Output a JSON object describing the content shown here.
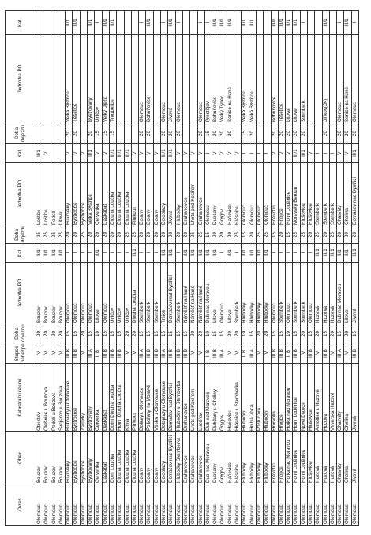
{
  "headers": [
    "Okres",
    "Obec",
    "Katastrální území",
    "Stupeň nebezpečí",
    "Doba dojezdu",
    "Jednotka PO",
    "Kat.",
    "Doba dojezdu",
    "Jednotka PO",
    "Kat.",
    "Doba dojezdu",
    "Jednotka PO",
    "Kat."
  ],
  "rows": [
    [
      "Olomouc",
      "Bouzov",
      "Obectov",
      "IV",
      "20",
      "Bouzov",
      "II/1",
      "25",
      "Loštice",
      "II/1",
      "",
      "",
      ""
    ],
    [
      "Olomouc",
      "Bouzov",
      "Olešnice u Bouzova",
      "IV",
      "20",
      "Bouzov",
      "II/1",
      "25",
      "Loštice",
      "V",
      "",
      "",
      ""
    ],
    [
      "Olomouc",
      "Bouzov",
      "Podolí u Bouzova",
      "IV",
      "20",
      "Bouzov",
      "II/1",
      "25",
      "Podolí",
      "",
      "",
      "",
      ""
    ],
    [
      "Olomouc",
      "Bouzov",
      "Svojanov u Bouzova",
      "IV",
      "20",
      "Bouzov",
      "II/1",
      "25",
      "Litovel",
      "",
      "",
      "",
      ""
    ],
    [
      "Olomouc",
      "Bukovany",
      "Bukovany u Olomouce",
      "III B",
      "15",
      "Olomouc",
      "I",
      "20",
      "Bukovany",
      "V",
      "20",
      "Velká Bystřice",
      "II/1"
    ],
    [
      "Olomouc",
      "Bystročice",
      "Bystročice",
      "III B",
      "15",
      "Olomouc",
      "I",
      "20",
      "Bystročice",
      "V",
      "20",
      "Těšetice",
      "III/1"
    ],
    [
      "Olomouc",
      "Bystročice",
      "Žerůvky",
      "IV",
      "20",
      "Olomouc",
      "I",
      "25",
      "Bystročice",
      "V",
      "",
      "",
      ""
    ],
    [
      "Olomouc",
      "Bystrovany",
      "Bystrovany",
      "III A",
      "15",
      "Olomouc",
      "I",
      "20",
      "Velká Bystřice",
      "II/1",
      "20",
      "Bystrovany",
      "II/1"
    ],
    [
      "Olomouc",
      "Červenka",
      "Červenka",
      "II B",
      "10",
      "Litovel",
      "II/1",
      "20",
      "Červenka",
      "V",
      "15",
      "Uničov",
      "I"
    ],
    [
      "Olomouc",
      "Daskabát",
      "Daskabát",
      "III B",
      "15",
      "Olomouc",
      "I",
      "20",
      "Daskabát",
      "V",
      "15",
      "Velký Újezd",
      "III/1"
    ],
    [
      "Olomouc",
      "Dolní Loučka",
      "Dolní Dlouhá Loučka",
      "III B",
      "15",
      "Uničov",
      "I",
      "20",
      "Dlouhá Loučka",
      "III/1",
      "15",
      "Troubelice",
      "II/1"
    ],
    [
      "Olomouc",
      "Dlouhá Loučka",
      "Horní Dlouhá Loučka",
      "III B",
      "15",
      "Uničov",
      "I",
      "20",
      "Dlouhá Loučka",
      "III/1",
      "",
      "",
      ""
    ],
    [
      "Olomouc",
      "Dlouhá Loučka",
      "Křivá",
      "IV",
      "20",
      "Uničov",
      "I",
      "25",
      "Dlouhá Loučka",
      "III/1",
      "",
      "",
      ""
    ],
    [
      "Olomouc",
      "Dlouhá Loučka",
      "Plinkout",
      "IV",
      "20",
      "Dlouhá Loučka",
      "III/1",
      "25",
      "Plinkout",
      "V",
      "",
      "",
      ""
    ],
    [
      "Olomouc",
      "Dolany",
      "Dolany u Olomouce",
      "III A",
      "15",
      "Šternberk",
      "I",
      "20",
      "Dolany",
      "V",
      "20",
      "Olomouc",
      "I"
    ],
    [
      "Olomouc",
      "Dolany",
      "Pohořany na Moravě",
      "III B",
      "15",
      "Šternberk",
      "I",
      "20",
      "Dolany",
      "V",
      "20",
      "Bohuňovice",
      "III/1"
    ],
    [
      "Olomouc",
      "Dolany",
      "Véska u Olomouce",
      "III B",
      "15",
      "Šternberk",
      "I",
      "20",
      "Dolany",
      "V",
      "",
      "",
      ""
    ],
    [
      "Olomouc",
      "Doloplazy",
      "Doloplazy u Olomouce",
      "III A",
      "15",
      "Tršice",
      "II/1",
      "20",
      "Doloplazy",
      "III/1",
      "20",
      "Olomouc",
      "I"
    ],
    [
      "Olomouc",
      "Domašov nad Bystřicí",
      "Domašov nad Bystřicí",
      "III B",
      "15",
      "Domašov nad Bystřicí",
      "II/1",
      "20",
      "Jívová",
      "III/1",
      "20",
      "Jívová",
      "III/1"
    ],
    [
      "Olomouc",
      "Hlubočky Šternberka",
      "Hlubočky u Šternberka",
      "III B",
      "15",
      "Šternberk",
      "I",
      "20",
      "Hlubočky",
      "V",
      "20",
      "Olomouc",
      "I"
    ],
    [
      "Olomouc",
      "Drahanovice",
      "Drahanovice",
      "III B",
      "15",
      "Náměšť na Hané",
      "II/1",
      "20",
      "Drahanovice",
      "V",
      "",
      "",
      ""
    ],
    [
      "Olomouc",
      "Drahanovice",
      "Lhota pod Kosířem",
      "IV",
      "20",
      "Náměšť na Hané",
      "II/1",
      "25",
      "Lhota pod Kosířem",
      "V",
      "",
      "",
      ""
    ],
    [
      "Olomouc",
      "Drahanovice",
      "Ludéřov",
      "IV",
      "20",
      "Náměšť na Hané",
      "II/1",
      "25",
      "Drahanovice",
      "V",
      "20",
      "Olomouc",
      "I"
    ],
    [
      "Olomouc",
      "Dub nad Moravou",
      "Dub nad Moravou",
      "II B",
      "10",
      "Dub nad Moravou",
      "II/1",
      "15",
      "Olomouc",
      "I",
      "15",
      "Prostějov",
      "I"
    ],
    [
      "Olomouc",
      "Dubčany",
      "Dubčany u Choliny",
      "III B",
      "15",
      "Litovel",
      "II/1",
      "20",
      "Dubčany",
      "V",
      "20",
      "Bohuňovice",
      "III/1"
    ],
    [
      "Olomouc",
      "Grygov",
      "Grygov",
      "III A",
      "15",
      "Olomouc",
      "I",
      "20",
      "Grygov",
      "V",
      "20",
      "Velký Týnec",
      "III/1"
    ],
    [
      "Olomouc",
      "Haňovice",
      "Haňovice",
      "IV",
      "20",
      "Litovel",
      "II/1",
      "20",
      "Haňovice",
      "V",
      "20",
      "Senice na Hané",
      "III/1"
    ],
    [
      "Olomouc",
      "Hlásnice",
      "Hlásnice u Šternberka",
      "IV",
      "20",
      "Šternberk",
      "I",
      "25",
      "Hlásnice",
      "V",
      "",
      "",
      ""
    ],
    [
      "Olomouc",
      "Hlubočky",
      "Hlubočky",
      "II B",
      "10",
      "Hlubočky",
      "II/1",
      "15",
      "Olomouc",
      "I",
      "15",
      "Velká Bystřice",
      "II/1"
    ],
    [
      "Olomouc",
      "Hlubočky",
      "Hrubá Voda",
      "III A",
      "15",
      "Hlubočky",
      "II/1",
      "20",
      "Olomouc",
      "I",
      "20",
      "Velká Bystřice",
      "II/1"
    ],
    [
      "Olomouc",
      "Hlubočky",
      "Posluchov",
      "IV",
      "20",
      "Hlubočky",
      "II/1",
      "25",
      "Olomouc",
      "I",
      "",
      "",
      ""
    ],
    [
      "Olomouc",
      "Hlubočky",
      "Hlubočky",
      "IV",
      "20",
      "Hlubočky",
      "II/1",
      "25",
      "Olomouc",
      "I",
      "",
      "",
      ""
    ],
    [
      "Olomouc",
      "Hněvotín",
      "Hněvotín",
      "III B",
      "15",
      "Olomouc",
      "I",
      "15",
      "Hněvotín",
      "V",
      "20",
      "Bohuňovice",
      "III/1"
    ],
    [
      "Olomouc",
      "Hnojice",
      "Hnojice",
      "III B",
      "15",
      "Šternberk",
      "I",
      "20",
      "Hnojice",
      "V",
      "20",
      "Těšetice",
      "III/1"
    ],
    [
      "Olomouc",
      "Horka nad Moravou",
      "Horka nad Moravou",
      "II B",
      "10",
      "Olomouc",
      "I",
      "15",
      "Horní Loděnice",
      "V",
      "20",
      "Litovel",
      "II/1"
    ],
    [
      "Olomouc",
      "Horní Loděnice",
      "Horní Loděnice",
      "III B",
      "15",
      "Šternberk",
      "I",
      "25",
      "Moravský Beroun",
      "III/1",
      "20",
      "Litovel",
      "II/1"
    ],
    [
      "Olomouc",
      "Horní Loděnice",
      "Nové Dvorce",
      "IV",
      "20",
      "Šternberk",
      "I",
      "25",
      "Hlušovice",
      "II/1",
      "20",
      "Šternberk",
      "I"
    ],
    [
      "Olomouc",
      "Hlušovice",
      "Hlušovice",
      "III B",
      "15",
      "Olomouc",
      "I",
      "20",
      "Hlušovice",
      "V",
      "",
      "",
      ""
    ],
    [
      "Olomouc",
      "Huzová",
      "Arnoltice u Huzové",
      "IV",
      "20",
      "Huzová",
      "III/1",
      "25",
      "Šternberk",
      "I",
      "",
      "",
      ""
    ],
    [
      "Olomouc",
      "Huzová",
      "Huzová",
      "III B",
      "15",
      "Huzová",
      "III/1",
      "20",
      "Šternberk",
      "I",
      "20",
      "Jiříkov(JK)",
      "III/1"
    ],
    [
      "Olomouc",
      "Huzová",
      "Veverská Huzové",
      "IV",
      "20",
      "Huzová",
      "III/1",
      "25",
      "Šternberk",
      "I",
      "",
      "",
      ""
    ],
    [
      "Olomouc",
      "Charváty",
      "Charváty",
      "III A",
      "15",
      "Dub nad Moravou",
      "II/1",
      "20",
      "Charváty",
      "V",
      "20",
      "Olomouc",
      "I"
    ],
    [
      "Olomouc",
      "Cholina",
      "Cholina",
      "IV",
      "20",
      "Litovel",
      "II/1",
      "20",
      "Cholina",
      "V",
      "20",
      "Senice na Hané",
      "III/1"
    ],
    [
      "Olomouc",
      "Jívová",
      "Jívová",
      "III B",
      "15",
      "Jívová",
      "III/1",
      "20",
      "Domašov nad Bystřicí",
      "II/1",
      "20",
      "Olomouc",
      "I"
    ]
  ]
}
